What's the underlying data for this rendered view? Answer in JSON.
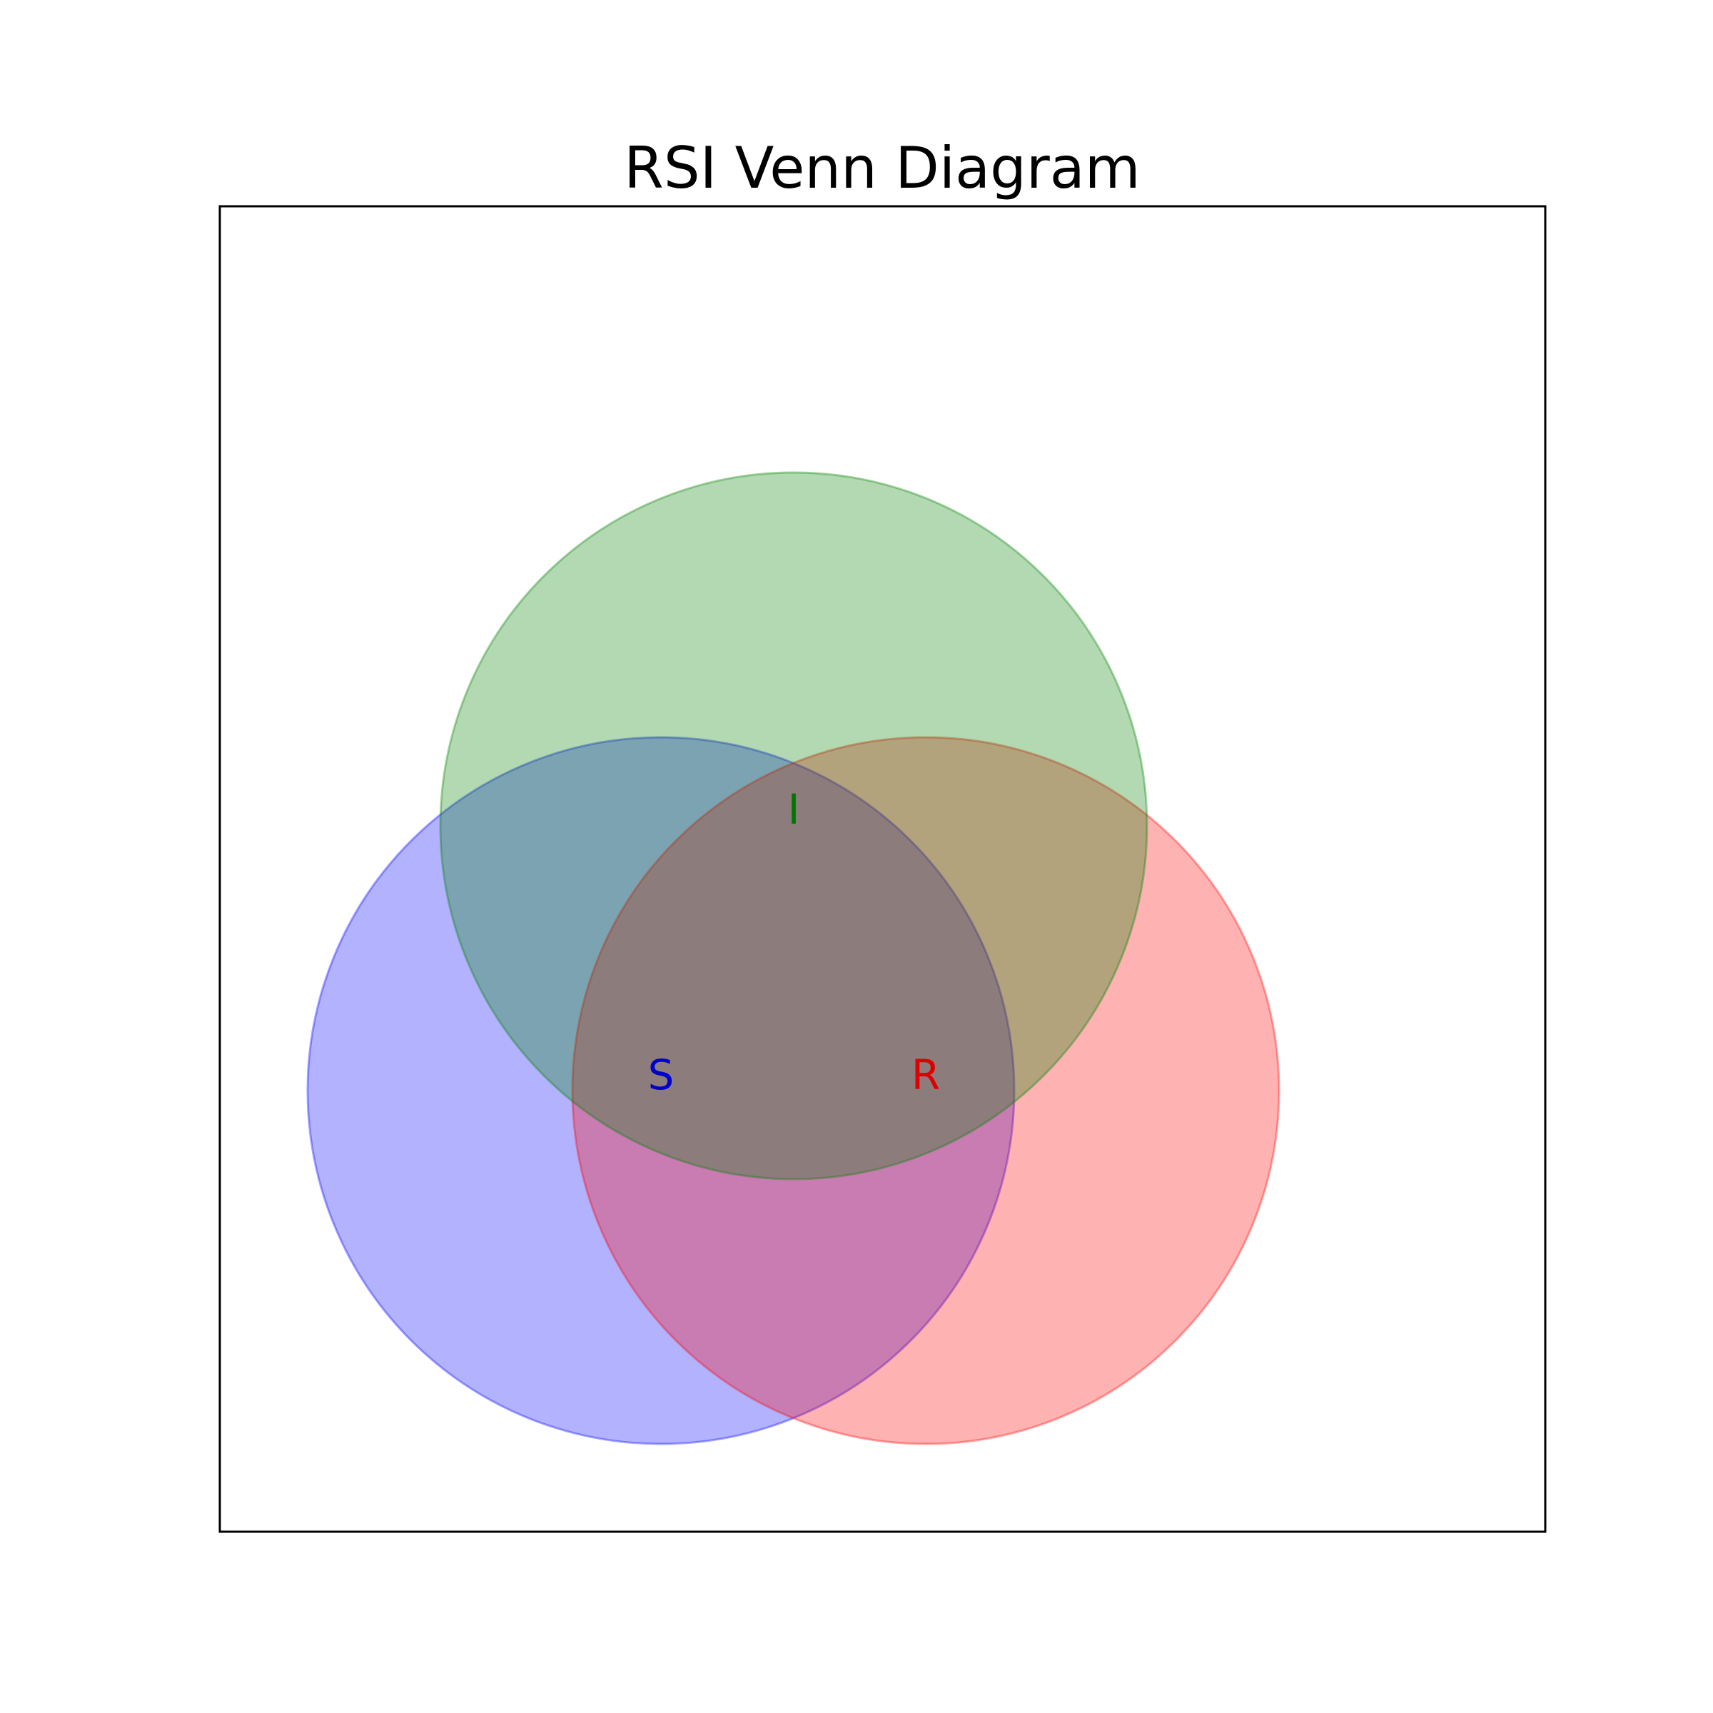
{
  "title": "RSI Venn Diagram",
  "sets": [
    {
      "label": "S",
      "color": "#0000ff",
      "label_color": "#0000cc"
    },
    {
      "label": "I",
      "color": "#008000",
      "label_color": "#007700"
    },
    {
      "label": "R",
      "color": "#ff0000",
      "label_color": "#dd0000"
    }
  ],
  "frame_color": "#000000"
}
